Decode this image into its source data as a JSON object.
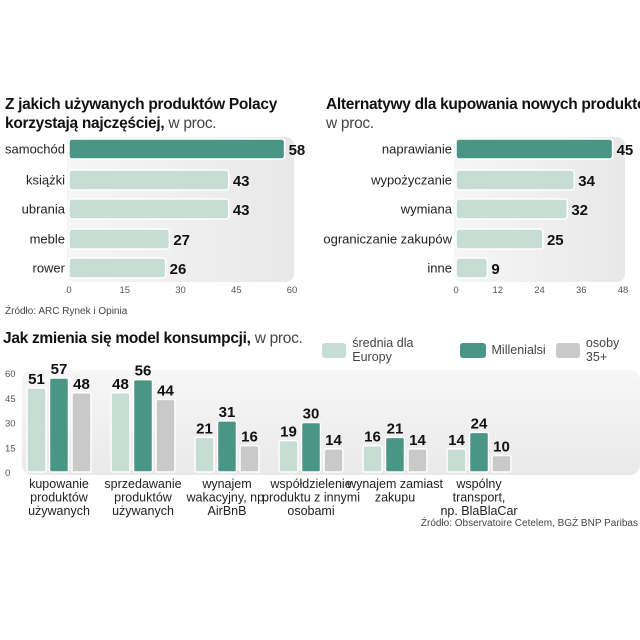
{
  "colors": {
    "accent": "#4a9686",
    "light": "#c5ddd3",
    "gray": "#c9c9c9",
    "panel": "#efefef"
  },
  "chart_data": [
    {
      "type": "bar",
      "orientation": "horizontal",
      "title": "Z jakich używanych produktów Polacy korzystają najczęściej,",
      "title_line1": "Z jakich używanych produktów Polacy",
      "title_line2": "korzystają najczęściej,",
      "unit": "w proc.",
      "categories": [
        "samochód",
        "książki",
        "ubrania",
        "meble",
        "rower"
      ],
      "values": [
        58,
        43,
        43,
        27,
        26
      ],
      "highlight": [
        true,
        false,
        false,
        false,
        false
      ],
      "xlim": [
        0,
        60
      ],
      "xticks": [
        0,
        15,
        30,
        45,
        60
      ],
      "source": "Źródło: ARC Rynek i Opinia"
    },
    {
      "type": "bar",
      "orientation": "horizontal",
      "title": "Alternatywy dla kupowania nowych produktów",
      "unit": "w proc.",
      "categories": [
        "naprawianie",
        "wypożyczanie",
        "wymiana",
        "ograniczanie zakupów",
        "inne"
      ],
      "values": [
        45,
        34,
        32,
        25,
        9
      ],
      "highlight": [
        true,
        false,
        false,
        false,
        false
      ],
      "xlim": [
        0,
        48
      ],
      "xticks": [
        0,
        12,
        24,
        36,
        48
      ]
    },
    {
      "type": "bar",
      "orientation": "vertical",
      "title": "Jak zmienia się model konsumpcji,",
      "unit": "w proc.",
      "categories": [
        [
          "kupowanie",
          "produktów",
          "używanych"
        ],
        [
          "sprzedawanie",
          "produktów",
          "używanych"
        ],
        [
          "wynajem",
          "wakacyjny, np.",
          "AirBnB"
        ],
        [
          "współdzielenie",
          "produktu z innymi",
          "osobami"
        ],
        [
          "wynajem zamiast",
          "zakupu"
        ],
        [
          "wspólny",
          "transport,",
          "np. BlaBlaCar"
        ]
      ],
      "series": [
        {
          "name": "średnia dla Europy",
          "values": [
            51,
            48,
            21,
            19,
            16,
            14
          ]
        },
        {
          "name": "Millenialsi",
          "values": [
            57,
            56,
            31,
            30,
            21,
            24
          ]
        },
        {
          "name": "osoby 35+",
          "values": [
            48,
            44,
            16,
            14,
            14,
            10
          ]
        }
      ],
      "ylim": [
        0,
        60
      ],
      "yticks": [
        0,
        15,
        30,
        45,
        60
      ],
      "legend": "top-right",
      "source": "Źródło: Observatoire Cetelem, BGŻ BNP Paribas"
    }
  ]
}
